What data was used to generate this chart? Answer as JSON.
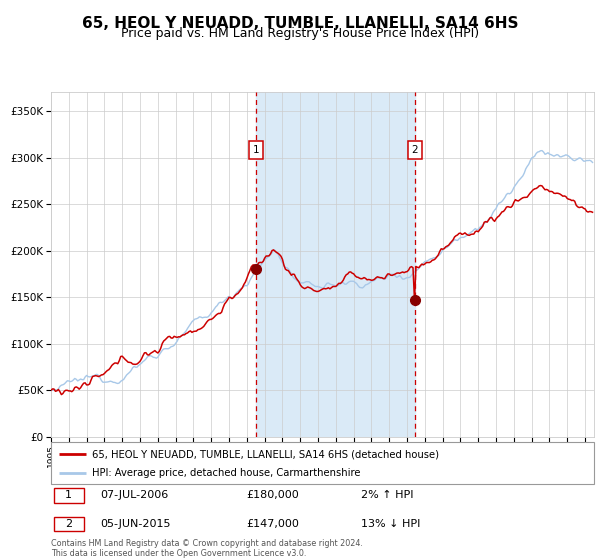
{
  "title": "65, HEOL Y NEUADD, TUMBLE, LLANELLI, SA14 6HS",
  "subtitle": "Price paid vs. HM Land Registry's House Price Index (HPI)",
  "hpi_legend": "HPI: Average price, detached house, Carmarthenshire",
  "price_legend": "65, HEOL Y NEUADD, TUMBLE, LLANELLI, SA14 6HS (detached house)",
  "annotation1_date": "07-JUL-2006",
  "annotation1_price": "£180,000",
  "annotation1_hpi": "2% ↑ HPI",
  "annotation2_date": "05-JUN-2015",
  "annotation2_price": "£147,000",
  "annotation2_hpi": "13% ↓ HPI",
  "footer": "Contains HM Land Registry data © Crown copyright and database right 2024.\nThis data is licensed under the Open Government Licence v3.0.",
  "sale1_x": 2006.54,
  "sale1_y": 180000,
  "sale2_x": 2015.42,
  "sale2_y": 147000,
  "ylim": [
    0,
    370000
  ],
  "xlim_start": 1995,
  "xlim_end": 2025.5,
  "shade_x1": 2006.54,
  "shade_x2": 2015.42,
  "shade_color": "#daeaf7",
  "grid_color": "#cccccc",
  "hpi_line_color": "#a8c8e8",
  "price_line_color": "#cc0000",
  "vline_color": "#cc0000",
  "dot_color": "#880000",
  "title_fontsize": 11,
  "subtitle_fontsize": 9
}
